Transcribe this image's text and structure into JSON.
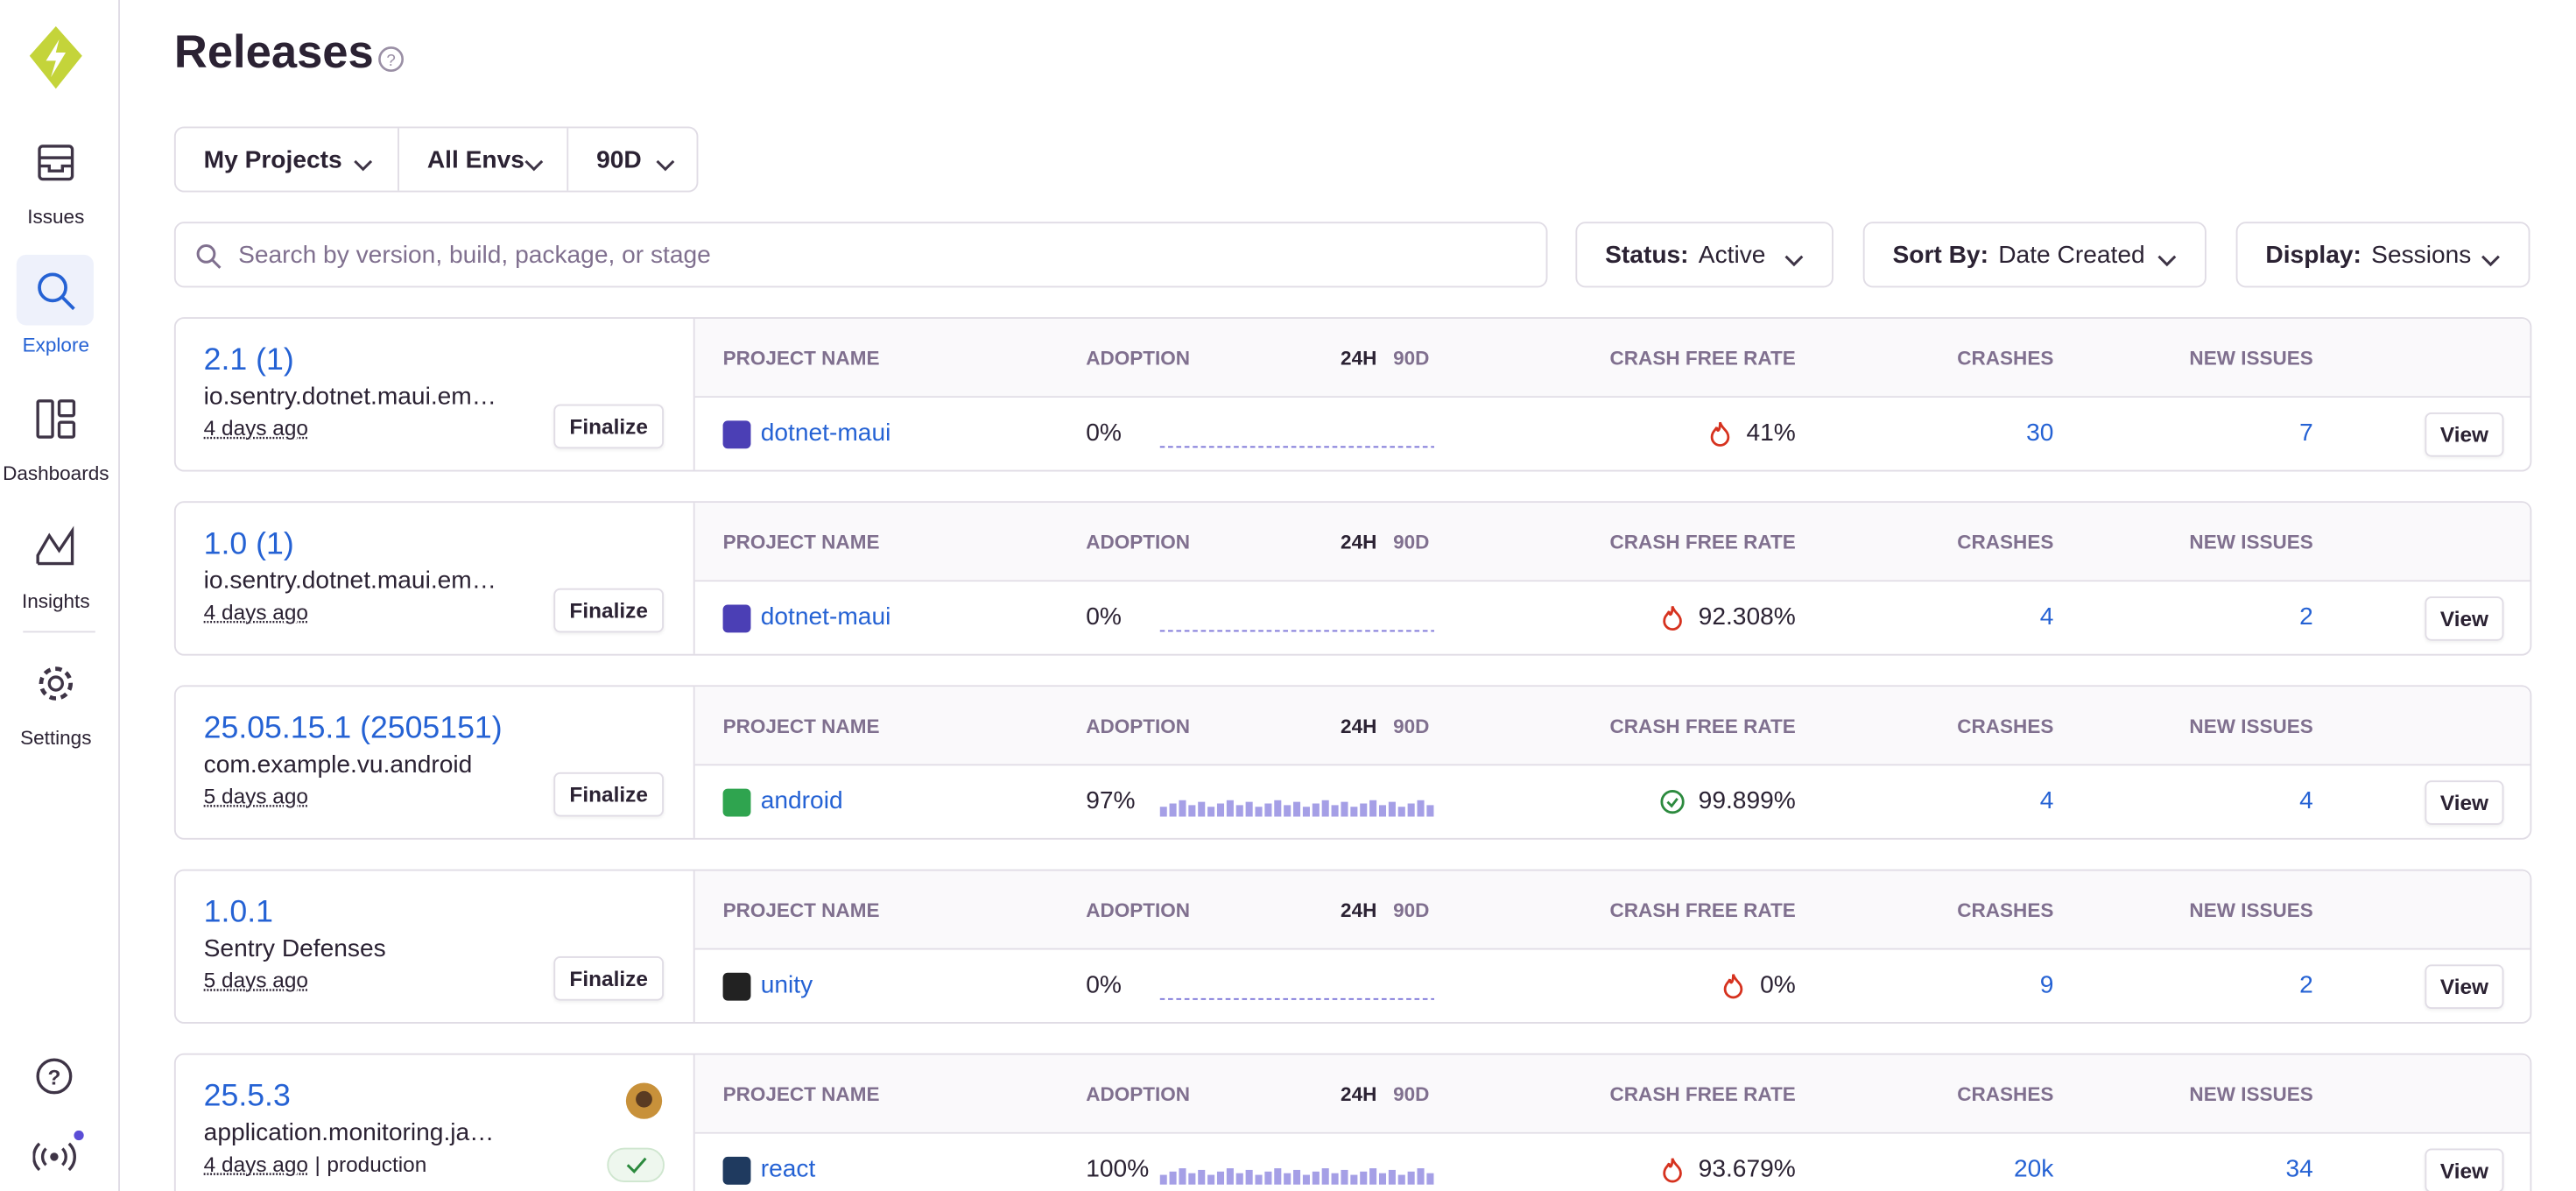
{
  "nav": {
    "items": [
      "Issues",
      "Explore",
      "Dashboards",
      "Insights",
      "Settings"
    ],
    "active": 1
  },
  "header": {
    "title": "Releases"
  },
  "filters": [
    "My Projects",
    "All Envs",
    "90D"
  ],
  "search": {
    "placeholder": "Search by version, build, package, or stage"
  },
  "dropdowns": [
    {
      "label": "Status:",
      "value": "Active"
    },
    {
      "label": "Sort By:",
      "value": "Date Created"
    },
    {
      "label": "Display:",
      "value": "Sessions"
    }
  ],
  "columns": {
    "project": "PROJECT NAME",
    "adoption": "ADOPTION",
    "h24": "24H",
    "d90": "90D",
    "crash_free": "CRASH FREE RATE",
    "crashes": "CRASHES",
    "new_issues": "NEW ISSUES"
  },
  "releases": [
    {
      "version": "2.1 (1)",
      "package": "io.sentry.dotnet.maui.em…",
      "age": "4 days ago",
      "action": "Finalize",
      "project": "dotnet-maui",
      "icon_color": "#4b3fb5",
      "adoption": "0%",
      "crash_free": "41%",
      "health": "crashing",
      "crashes": "30",
      "new_issues": "7",
      "view": "View"
    },
    {
      "version": "1.0 (1)",
      "package": "io.sentry.dotnet.maui.em…",
      "age": "4 days ago",
      "action": "Finalize",
      "project": "dotnet-maui",
      "icon_color": "#4b3fb5",
      "adoption": "0%",
      "crash_free": "92.308%",
      "health": "crashing",
      "crashes": "4",
      "new_issues": "2",
      "view": "View"
    },
    {
      "version": "25.05.15.1 (2505151)",
      "package": "com.example.vu.android",
      "age": "5 days ago",
      "action": "Finalize",
      "project": "android",
      "icon_color": "#2fa44f",
      "adoption": "97%",
      "crash_free": "99.899%",
      "health": "healthy",
      "crashes": "4",
      "new_issues": "4",
      "view": "View"
    },
    {
      "version": "1.0.1",
      "package": "Sentry Defenses",
      "age": "5 days ago",
      "action": "Finalize",
      "project": "unity",
      "icon_color": "#222222",
      "adoption": "0%",
      "crash_free": "0%",
      "health": "crashing",
      "crashes": "9",
      "new_issues": "2",
      "view": "View"
    },
    {
      "version": "25.5.3",
      "package": "application.monitoring.ja…",
      "age": "4 days ago",
      "environment": "production",
      "project": "react",
      "icon_color": "#1f3a5f",
      "adoption": "100%",
      "crash_free": "93.679%",
      "health": "crashing",
      "crashes": "20k",
      "new_issues": "34",
      "view": "View"
    }
  ]
}
